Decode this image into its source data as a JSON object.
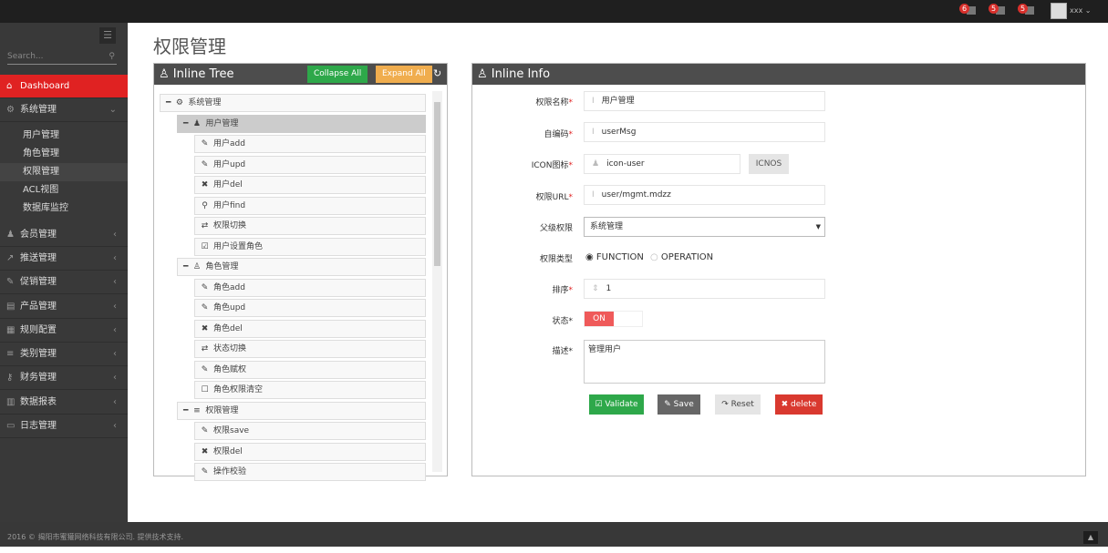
{
  "topbar": {
    "notifications": [
      {
        "count": "6",
        "icon": "bell-icon"
      },
      {
        "count": "5",
        "icon": "envelope-icon"
      },
      {
        "count": "5",
        "icon": "tasks-icon"
      }
    ],
    "user": "xxx"
  },
  "sidebar": {
    "search_placeholder": "Search...",
    "items": [
      {
        "label": "Dashboard",
        "icon": "home-icon",
        "active": true
      },
      {
        "label": "系统管理",
        "icon": "cogs-icon",
        "expanded": true,
        "children": [
          "用户管理",
          "角色管理",
          "权限管理",
          "ACL视图",
          "数据库监控"
        ],
        "current": "权限管理"
      },
      {
        "label": "会员管理",
        "icon": "user-icon"
      },
      {
        "label": "推送管理",
        "icon": "share-icon"
      },
      {
        "label": "促销管理",
        "icon": "pencil-icon"
      },
      {
        "label": "产品管理",
        "icon": "book-icon"
      },
      {
        "label": "规则配置",
        "icon": "list-alt-icon"
      },
      {
        "label": "类别管理",
        "icon": "list-icon"
      },
      {
        "label": "财务管理",
        "icon": "key-icon"
      },
      {
        "label": "数据报表",
        "icon": "bar-chart-icon"
      },
      {
        "label": "日志管理",
        "icon": "credit-card-icon"
      }
    ]
  },
  "page_title": "权限管理",
  "tree_panel": {
    "title": "Inline Tree",
    "collapse_all": "Collapse All",
    "expand_all": "Expand All",
    "nodes": [
      {
        "level": 0,
        "label": "系统管理",
        "icon": "cogs-icon",
        "toggle": "minus"
      },
      {
        "level": 1,
        "label": "用户管理",
        "icon": "user-icon",
        "toggle": "minus",
        "selected": true
      },
      {
        "level": 2,
        "label": "用户add",
        "icon": "pencil-icon"
      },
      {
        "level": 2,
        "label": "用户upd",
        "icon": "edit-icon"
      },
      {
        "level": 2,
        "label": "用户del",
        "icon": "times-icon"
      },
      {
        "level": 2,
        "label": "用户find",
        "icon": "search-icon"
      },
      {
        "level": 2,
        "label": "权限切换",
        "icon": "retweet-icon"
      },
      {
        "level": 2,
        "label": "用户设置角色",
        "icon": "check-square-icon"
      },
      {
        "level": 1,
        "label": "角色管理",
        "icon": "sitemap-icon",
        "toggle": "minus"
      },
      {
        "level": 2,
        "label": "角色add",
        "icon": "pencil-icon"
      },
      {
        "level": 2,
        "label": "角色upd",
        "icon": "edit-icon"
      },
      {
        "level": 2,
        "label": "角色del",
        "icon": "times-icon"
      },
      {
        "level": 2,
        "label": "状态切换",
        "icon": "retweet-icon"
      },
      {
        "level": 2,
        "label": "角色赋权",
        "icon": "pencil-icon"
      },
      {
        "level": 2,
        "label": "角色权限清空",
        "icon": "square-icon"
      },
      {
        "level": 1,
        "label": "权限管理",
        "icon": "list-icon",
        "toggle": "minus"
      },
      {
        "level": 2,
        "label": "权限save",
        "icon": "pencil-icon"
      },
      {
        "level": 2,
        "label": "权限del",
        "icon": "times-icon"
      },
      {
        "level": 2,
        "label": "操作校验",
        "icon": "edit-icon"
      }
    ]
  },
  "info_panel": {
    "title": "Inline Info",
    "fields": {
      "name": {
        "label": "权限名称",
        "value": "用户管理"
      },
      "code": {
        "label": "自编码",
        "value": "userMsg"
      },
      "icon": {
        "label": "ICON图标",
        "value": "icon-user",
        "button": "ICNOS"
      },
      "url": {
        "label": "权限URL",
        "value": "user/mgmt.mdzz"
      },
      "parent": {
        "label": "父级权限",
        "value": "系统管理"
      },
      "type": {
        "label": "权限类型",
        "options": [
          "FUNCTION",
          "OPERATION"
        ],
        "selected": "FUNCTION"
      },
      "order": {
        "label": "排序",
        "value": "1"
      },
      "status": {
        "label": "状态",
        "value": "ON",
        "on": true
      },
      "desc": {
        "label": "描述",
        "value": "管理用户"
      }
    },
    "buttons": {
      "validate": "Validate",
      "save": "Save",
      "reset": "Reset",
      "delete": "delete"
    }
  },
  "colors": {
    "accent": "#e02222",
    "validate": "#2ea84a",
    "save": "#666666",
    "reset": "#e5e5e5",
    "delete": "#d9392f",
    "expand": "#f0ad4e",
    "toggle_on": "#ef5a5a"
  },
  "footer": {
    "text": "2016 © 揭阳市蜜獾网络科技有限公司. 提供技术支持."
  }
}
